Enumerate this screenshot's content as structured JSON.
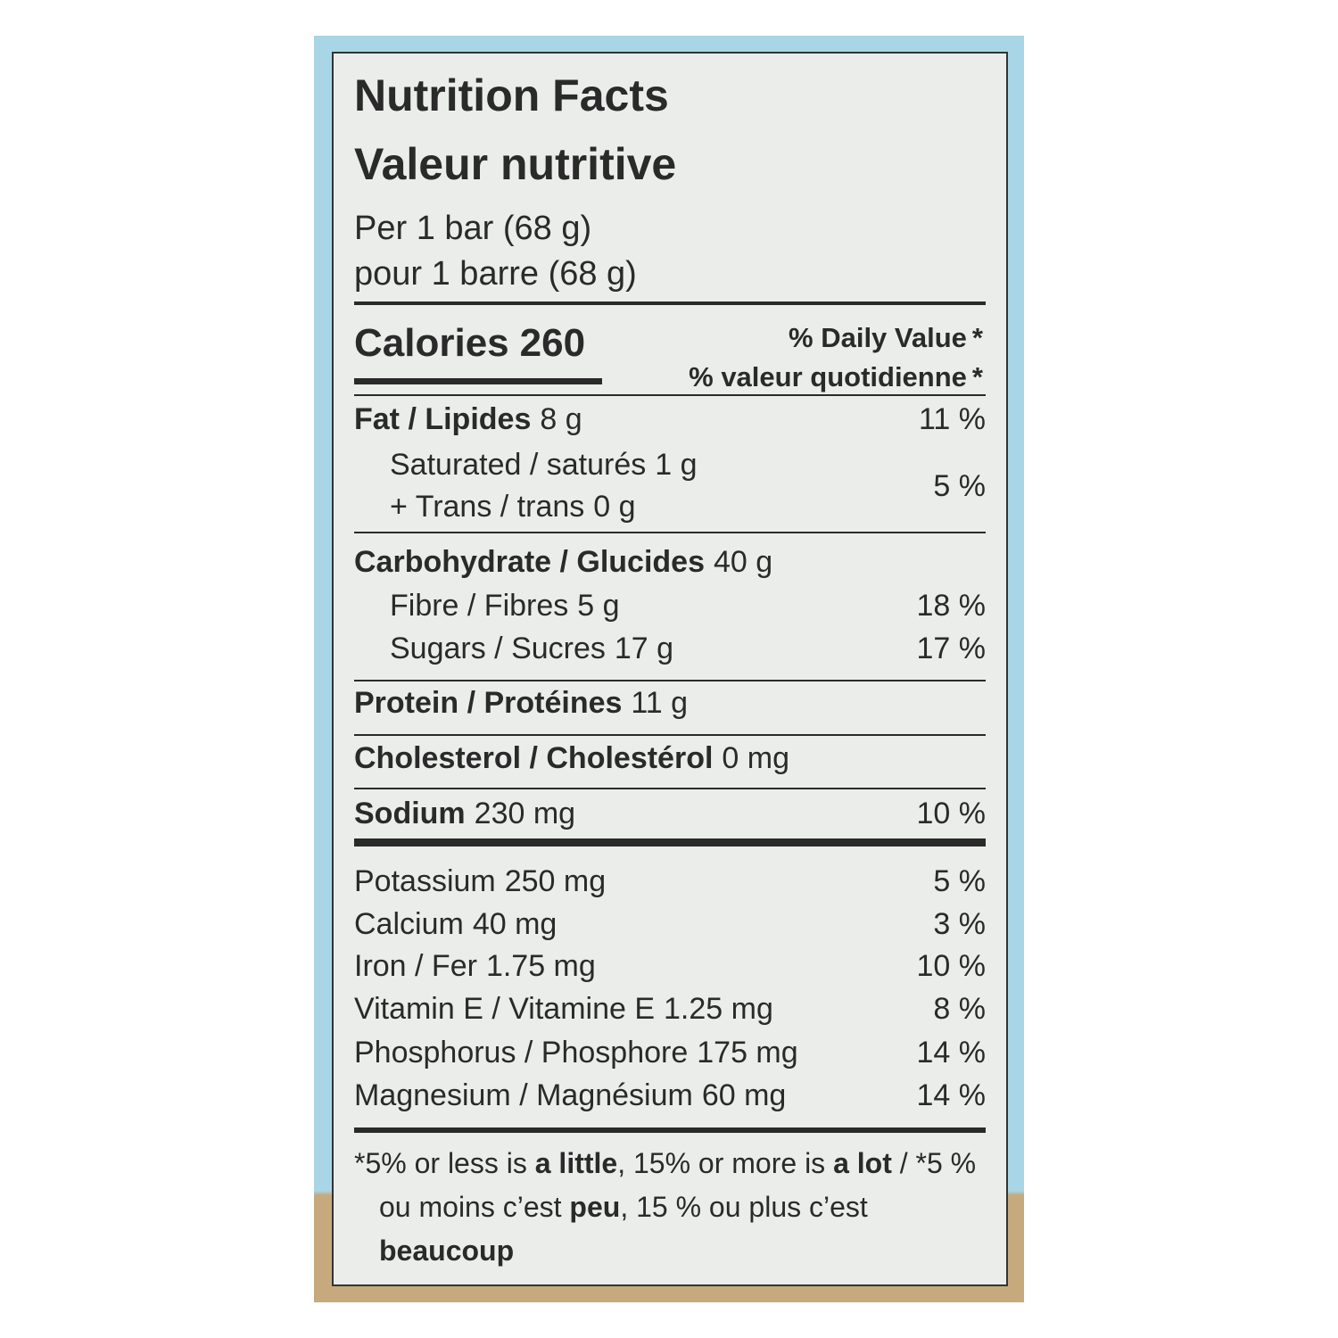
{
  "header": {
    "title_en": "Nutrition Facts",
    "title_fr": "Valeur nutritive",
    "serving_en": "Per 1 bar (68 g)",
    "serving_fr": "pour 1 barre (68 g)"
  },
  "calories": {
    "label": "Calories",
    "value": "260"
  },
  "daily_value_header": {
    "en": "% Daily Value",
    "fr": "% valeur quotidienne",
    "marker": "*"
  },
  "nutrients": [
    {
      "name": "Fat / Lipides",
      "amount": "8 g",
      "dv": "11 %"
    },
    {
      "name": "Saturated / saturés",
      "amount": "1 g",
      "dv": "5 %"
    },
    {
      "name": "+ Trans / trans",
      "amount": "0 g"
    },
    {
      "name": "Carbohydrate / Glucides",
      "amount": "40 g"
    },
    {
      "name": "Fibre / Fibres",
      "amount": "5 g",
      "dv": "18 %"
    },
    {
      "name": "Sugars / Sucres",
      "amount": "17 g",
      "dv": "17 %"
    },
    {
      "name": "Protein / Protéines",
      "amount": "11 g"
    },
    {
      "name": "Cholesterol / Cholestérol",
      "amount": "0 mg"
    },
    {
      "name": "Sodium",
      "amount": "230 mg",
      "dv": "10 %"
    },
    {
      "name": "Potassium",
      "amount": "250 mg",
      "dv": "5 %"
    },
    {
      "name": "Calcium",
      "amount": "40 mg",
      "dv": "3 %"
    },
    {
      "name": "Iron / Fer",
      "amount": "1.75 mg",
      "dv": "10 %"
    },
    {
      "name": "Vitamin E / Vitamine E",
      "amount": "1.25 mg",
      "dv": "8 %"
    },
    {
      "name": "Phosphorus / Phosphore",
      "amount": "175 mg",
      "dv": "14 %"
    },
    {
      "name": "Magnesium / Magnésium",
      "amount": "60 mg",
      "dv": "14 %"
    }
  ],
  "footnote": [
    {
      "text": "*5% or less is ",
      "bold": false
    },
    {
      "text": "a little",
      "bold": true
    },
    {
      "text": ", 15% or more is ",
      "bold": false
    },
    {
      "text": "a lot",
      "bold": true
    },
    {
      "text": " / *5 % ou moins c’est ",
      "bold": false
    },
    {
      "text": "peu",
      "bold": true
    },
    {
      "text": ", 15 % ou plus c’est ",
      "bold": false
    },
    {
      "text": "beaucoup",
      "bold": true
    }
  ]
}
